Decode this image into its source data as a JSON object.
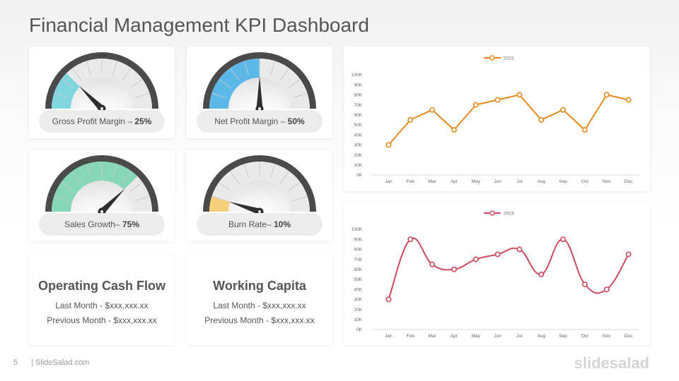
{
  "title": "Financial Management KPI Dashboard",
  "gauges": [
    {
      "label": "Gross Profit Margin – ",
      "value_text": "25%",
      "value": 25,
      "color": "#7fd6df"
    },
    {
      "label": "Net Profit Margin – ",
      "value_text": "50%",
      "value": 50,
      "color": "#5bb8e8"
    },
    {
      "label": "Sales Growth– ",
      "value_text": "75%",
      "value": 75,
      "color": "#86d6b8"
    },
    {
      "label": "Burn Rate– ",
      "value_text": "10%",
      "value": 10,
      "color": "#f7cf7a"
    }
  ],
  "info_cards": [
    {
      "title": "Operating Cash Flow",
      "line1": "Last Month - $xxx,xxx.xx",
      "line2": "Previous Month - $xxx,xxx.xx"
    },
    {
      "title": "Working Capita",
      "line1": "Last Month - $xxx,xxx.xx",
      "line2": "Previous Month - $xxx,xxx.xx"
    }
  ],
  "chart_data": [
    {
      "type": "line",
      "categories": [
        "Jan",
        "Feb",
        "Mar",
        "Apr",
        "May",
        "Jun",
        "Jul",
        "Aug",
        "Sep",
        "Oct",
        "Nov",
        "Dec"
      ],
      "series": [
        {
          "name": "2022",
          "values": [
            30000,
            55000,
            65000,
            45000,
            70000,
            75000,
            80000,
            55000,
            65000,
            45000,
            80000,
            75000
          ],
          "color": "#e8891d"
        }
      ],
      "yticks": [
        "0K",
        "10K",
        "20K",
        "30K",
        "40K",
        "50K",
        "60K",
        "70K",
        "80K",
        "90K",
        "100K"
      ],
      "ylim": [
        0,
        100000
      ],
      "smooth": false,
      "legend": "top-center",
      "grid": false
    },
    {
      "type": "line",
      "categories": [
        "Jan",
        "Feb",
        "Mar",
        "Apr",
        "May",
        "Jun",
        "Jul",
        "Aug",
        "Sep",
        "Oct",
        "Nov",
        "Dec"
      ],
      "series": [
        {
          "name": "2023",
          "values": [
            30000,
            90000,
            65000,
            60000,
            70000,
            75000,
            80000,
            55000,
            90000,
            45000,
            40000,
            75000
          ],
          "color": "#cf4a5a"
        }
      ],
      "yticks": [
        "0K",
        "10K",
        "20K",
        "30K",
        "40K",
        "50K",
        "60K",
        "70K",
        "80K",
        "90K",
        "100K"
      ],
      "ylim": [
        0,
        100000
      ],
      "smooth": true,
      "legend": "top-center",
      "grid": false
    }
  ],
  "footer": {
    "page": "5",
    "site": "| SlideSalad.com",
    "brand": "slidesalad"
  }
}
